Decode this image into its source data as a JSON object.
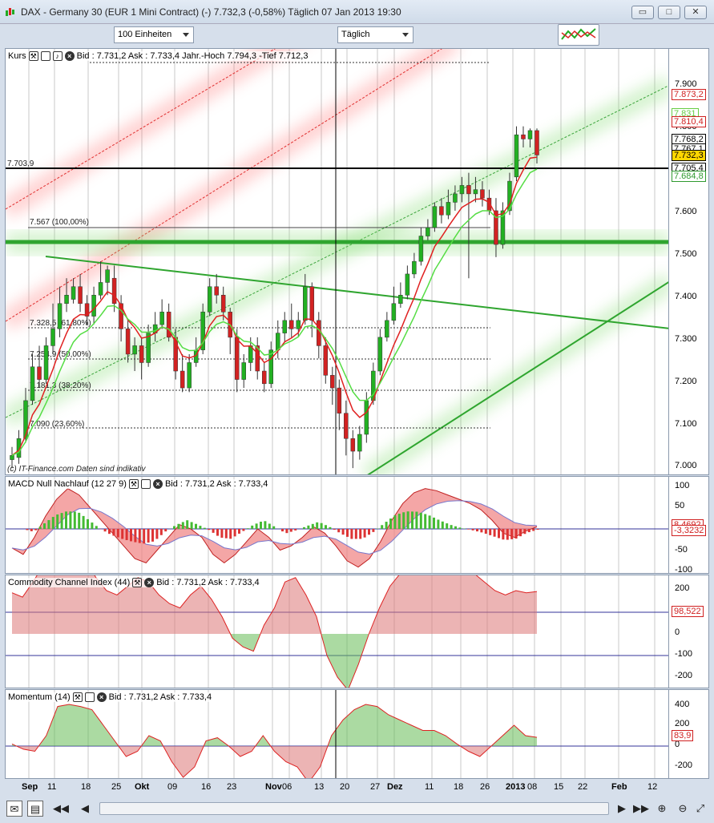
{
  "window": {
    "title": "DAX - Germany 30 (EUR 1 Mini Contract) (-)   7.732,3 (-0,58%)   Täglich  07 Jan 2013 19:30"
  },
  "toolbar": {
    "units": "100 Einheiten",
    "period": "Täglich"
  },
  "panels": {
    "price": {
      "label": "Kurs",
      "quote": "Bid : 7.731,2 Ask : 7.733,4 Jahr.-Hoch 7.794,3 -Tief 7.712,3",
      "yticks": [
        "7.900",
        "7.800",
        "7.700",
        "7.600",
        "7.500",
        "7.400",
        "7.300",
        "7.200",
        "7.100",
        "7.000"
      ],
      "tags": [
        {
          "text": "7.873,2",
          "color": "#d02020"
        },
        {
          "text": "7.831",
          "color": "#66cc44"
        },
        {
          "text": "7.810,4",
          "color": "#d02020"
        },
        {
          "text": "7.768,2",
          "color": "#000000"
        },
        {
          "text": "7.767,1",
          "color": "#000000"
        },
        {
          "text": "7.732,3",
          "color": "#000000"
        },
        {
          "text": "7.705,4",
          "color": "#000000"
        },
        {
          "text": "7.684,8",
          "color": "#2f9a2f"
        }
      ],
      "fib_labels": [
        "7.703,9",
        "7.567 (100,00%)",
        "7.328,5 (61,80%)",
        "7.254,9 (50,00%)",
        "7.181,3 (38,20%)",
        "7.090 (23,60%)"
      ],
      "source": "(c) IT-Finance.com  Daten sind indikativ",
      "colors": {
        "up": "#22b022",
        "down": "#d22222",
        "support": "#2fa52f",
        "resist": "#e03030"
      }
    },
    "macd": {
      "label": "MACD Null Nachlauf (12 27 9)",
      "quote": "Bid : 7.731,2 Ask : 7.733,4",
      "yticks": [
        "100",
        "50",
        "0",
        "-50",
        "-100"
      ],
      "tags": [
        {
          "text": "8,4692",
          "color": "#d02020"
        },
        {
          "text": "-3,3232",
          "color": "#d02020"
        }
      ]
    },
    "cci": {
      "label": "Commodity Channel Index (44)",
      "quote": "Bid : 7.731,2 Ask : 7.733,4",
      "yticks": [
        "200",
        "100",
        "0",
        "-100",
        "-200"
      ],
      "tags": [
        {
          "text": "98,522",
          "color": "#d02020"
        }
      ]
    },
    "momentum": {
      "label": "Momentum (14)",
      "quote": "Bid : 7.731,2 Ask : 7.733,4",
      "yticks": [
        "400",
        "200",
        "0",
        "-200"
      ],
      "tags": [
        {
          "text": "83,9",
          "color": "#d02020"
        }
      ]
    }
  },
  "xaxis": [
    "Sep",
    "11",
    "18",
    "25",
    "Okt",
    "09",
    "16",
    "23",
    "Nov",
    "06",
    "13",
    "20",
    "27",
    "Dez",
    "11",
    "18",
    "26",
    "2013",
    "08",
    "15",
    "22",
    "Feb",
    "12"
  ]
}
